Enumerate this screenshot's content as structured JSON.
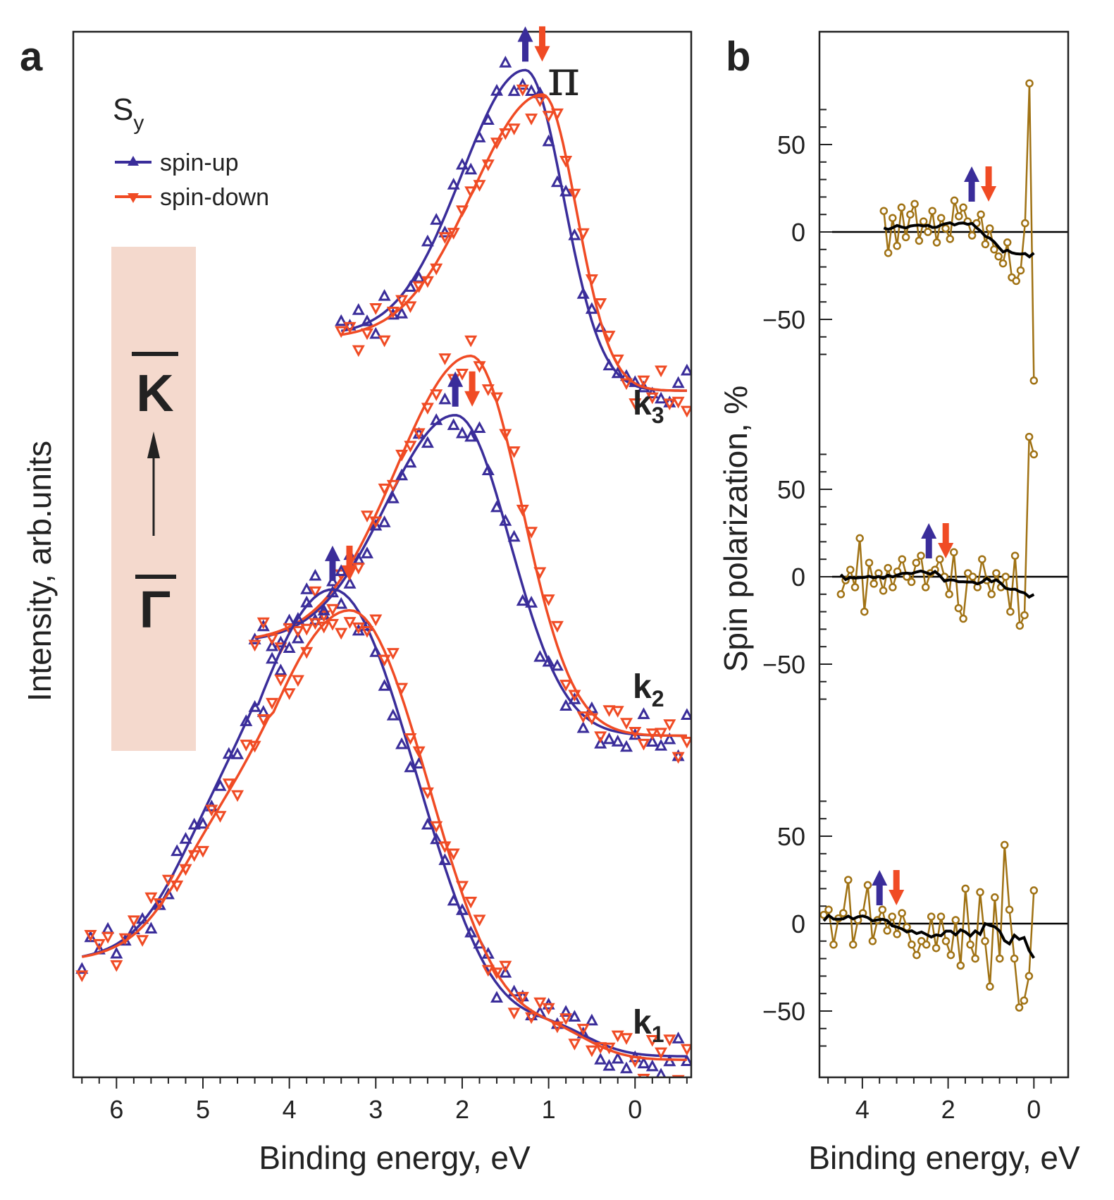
{
  "colors": {
    "spin_up": "#3a2d9a",
    "spin_down": "#f04b24",
    "polarization": "#a07214",
    "fit": "#000000",
    "band": "#f4d9cd",
    "frame": "#222222"
  },
  "panel_a": {
    "letter": "a",
    "xlabel": "Binding energy, eV",
    "ylabel": "Intensity, arb.units",
    "x_ticks": [
      "6",
      "5",
      "4",
      "3",
      "2",
      "1",
      "0"
    ],
    "legend_title": "S",
    "legend_title_sub": "y",
    "legend_up": "spin-up",
    "legend_down": "spin-down",
    "pi_label": "π",
    "k_labels": [
      {
        "base": "k",
        "sub": "3"
      },
      {
        "base": "k",
        "sub": "2"
      },
      {
        "base": "k",
        "sub": "1"
      }
    ],
    "direction_top": "K",
    "direction_bottom": "Γ"
  },
  "panel_b": {
    "letter": "b",
    "xlabel": "Binding energy, eV",
    "ylabel": "Spin polarization, %",
    "x_ticks": [
      "4",
      "2",
      "0"
    ],
    "y_tick_labels": [
      "50",
      "0",
      "−50"
    ]
  },
  "chart_data": [
    {
      "type": "line",
      "title": "a",
      "xlabel": "Binding energy, eV",
      "ylabel": "Intensity, arb.units",
      "xlim": [
        6.5,
        -0.65
      ],
      "ylim": [
        0,
        3.0
      ],
      "series": [
        {
          "curve": "k3",
          "name": "spin-up",
          "peak_eV": 1.27,
          "peak": 2.89,
          "start_eV": 3.4,
          "start": 2.13,
          "end_eV": -0.6,
          "end": 1.97
        },
        {
          "curve": "k3",
          "name": "spin-down",
          "peak_eV": 1.07,
          "peak": 2.82,
          "start_eV": 3.4,
          "start": 2.12,
          "end_eV": -0.6,
          "end": 1.97
        },
        {
          "curve": "k2",
          "name": "spin-up",
          "peak_eV": 2.08,
          "peak": 1.9,
          "start_eV": 4.4,
          "start": 1.25,
          "end_eV": -0.6,
          "end": 0.98
        },
        {
          "curve": "k2",
          "name": "spin-down",
          "peak_eV": 1.9,
          "peak": 2.07,
          "start_eV": 4.4,
          "start": 1.25,
          "end_eV": -0.6,
          "end": 0.98
        },
        {
          "curve": "k1",
          "name": "spin-up",
          "peak_eV": 3.5,
          "peak": 1.4,
          "start_eV": 6.4,
          "start": 0.33,
          "end_eV": -0.6,
          "end": 0.06
        },
        {
          "curve": "k1",
          "name": "spin-down",
          "peak_eV": 3.3,
          "peak": 1.34,
          "start_eV": 6.4,
          "start": 0.33,
          "end_eV": -0.6,
          "end": 0.05
        }
      ]
    },
    {
      "type": "line",
      "title": "b",
      "xlabel": "Binding energy, eV",
      "ylabel": "Spin polarization, %",
      "xlim": [
        5.0,
        -0.8
      ],
      "yticks": [
        50,
        0,
        -50
      ],
      "series": [
        {
          "name": "k3",
          "x_range": [
            3.5,
            0.0
          ],
          "values": [
            12,
            -12,
            8,
            -8,
            14,
            -3,
            10,
            16,
            -5,
            6,
            0,
            12,
            -6,
            8,
            2,
            -4,
            18,
            9,
            14,
            6,
            -2,
            5,
            10,
            -7,
            2,
            -10,
            -14,
            -18,
            -6,
            -26,
            -28,
            -22,
            5,
            85,
            -85
          ]
        },
        {
          "name": "k2",
          "x_range": [
            4.5,
            0.0
          ],
          "values": [
            -10,
            -2,
            4,
            -6,
            22,
            -20,
            8,
            -4,
            2,
            -8,
            5,
            -6,
            3,
            10,
            0,
            -3,
            8,
            12,
            -6,
            2,
            4,
            10,
            0,
            -10,
            14,
            -18,
            -24,
            2,
            0,
            -6,
            10,
            -2,
            -10,
            2,
            -6,
            0,
            -20,
            12,
            -28,
            -22,
            80,
            70
          ]
        },
        {
          "name": "k1",
          "x_range": [
            4.9,
            0.0
          ],
          "values": [
            5,
            8,
            -12,
            3,
            6,
            25,
            -12,
            2,
            6,
            22,
            -10,
            2,
            8,
            -4,
            4,
            -6,
            6,
            -2,
            -12,
            -18,
            -10,
            -12,
            4,
            -14,
            4,
            -10,
            -18,
            2,
            -24,
            20,
            -12,
            -20,
            18,
            -10,
            -36,
            15,
            -20,
            45,
            8,
            -20,
            -48,
            -44,
            -30,
            19
          ]
        }
      ]
    }
  ]
}
